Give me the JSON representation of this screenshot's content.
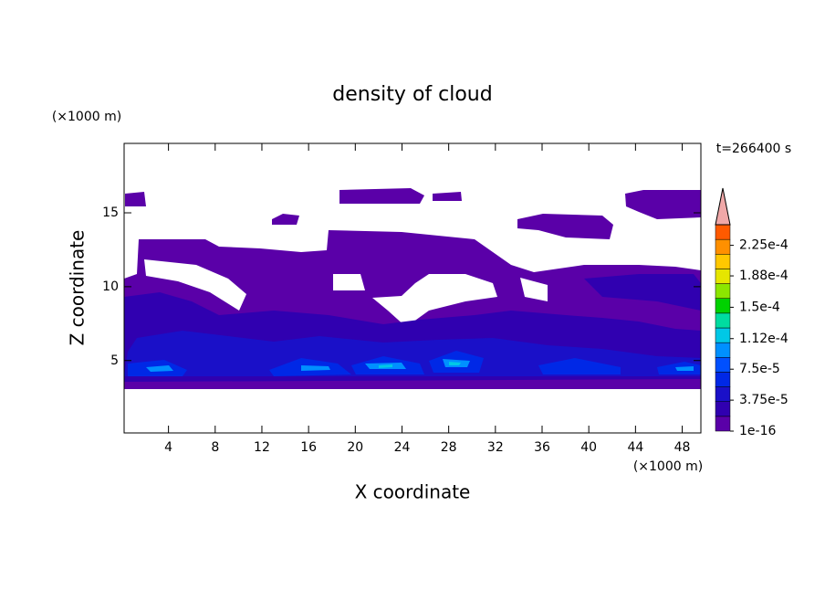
{
  "chart_data": {
    "type": "contour",
    "title": "density of cloud",
    "x_label": "X coordinate",
    "y_label": "Z coordinate",
    "x_unit": "(×1000 m)",
    "y_unit": "(×1000 m)",
    "time_label": "t=266400 s",
    "xlim": [
      0.2,
      49.6
    ],
    "ylim": [
      0.1,
      19.7
    ],
    "xticks": [
      4,
      8,
      12,
      16,
      20,
      24,
      28,
      32,
      36,
      40,
      44,
      48
    ],
    "yticks": [
      5,
      10,
      15
    ],
    "colorbar": {
      "lim": [
        0,
        0.00025
      ],
      "colors": [
        "#5a00a8",
        "#3000b0",
        "#1a10c8",
        "#0028e6",
        "#0050ff",
        "#0090ff",
        "#00c8e6",
        "#00dca0",
        "#00d200",
        "#8ce600",
        "#e6e600",
        "#ffc800",
        "#ff9000",
        "#ff5a00"
      ],
      "extend_color": "#f0a8a8",
      "ticks": [
        {
          "value": 1e-16,
          "label": "1e-16"
        },
        {
          "value": 3.75e-05,
          "label": "3.75e-5"
        },
        {
          "value": 7.5e-05,
          "label": "7.5e-5"
        },
        {
          "value": 0.000112,
          "label": "1.12e-4"
        },
        {
          "value": 0.00015,
          "label": "1.5e-4"
        },
        {
          "value": 0.000188,
          "label": "1.88e-4"
        },
        {
          "value": 0.000225,
          "label": "2.25e-4"
        }
      ]
    }
  }
}
